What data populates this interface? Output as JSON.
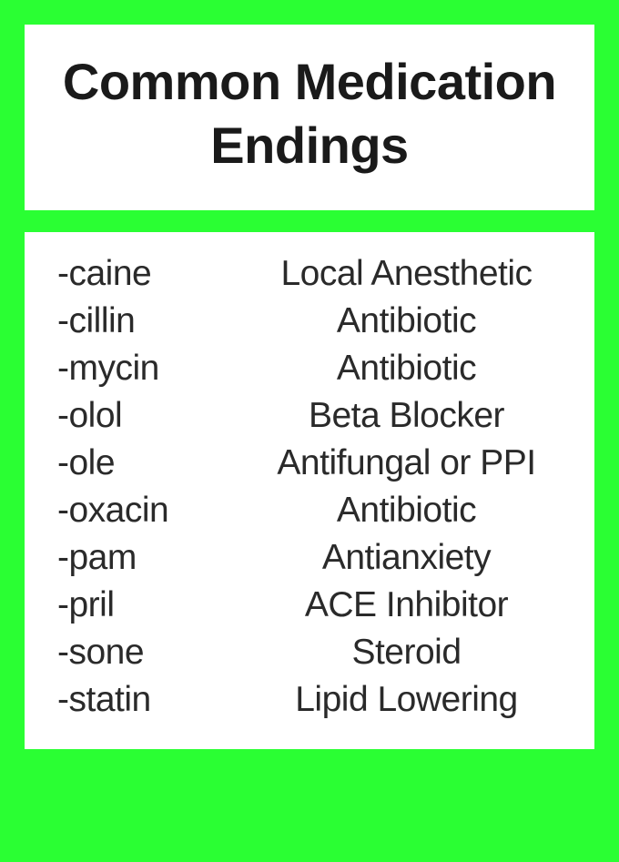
{
  "styling": {
    "border_color": "#2aff33",
    "background_color": "#ffffff",
    "text_color": "#1a1a1a",
    "body_text_color": "#2a2a2a",
    "title_fontsize": 56,
    "body_fontsize": 39,
    "title_fontweight": 900,
    "body_fontweight": 400,
    "outer_padding": 24,
    "suffix_column_width": 205
  },
  "title": "Common Medication Endings",
  "rows": [
    {
      "suffix": "-caine",
      "category": "Local Anesthetic"
    },
    {
      "suffix": "-cillin",
      "category": "Antibiotic"
    },
    {
      "suffix": "-mycin",
      "category": "Antibiotic"
    },
    {
      "suffix": "-olol",
      "category": "Beta Blocker"
    },
    {
      "suffix": "-ole",
      "category": "Antifungal or PPI"
    },
    {
      "suffix": "-oxacin",
      "category": "Antibiotic"
    },
    {
      "suffix": "-pam",
      "category": "Antianxiety"
    },
    {
      "suffix": "-pril",
      "category": "ACE Inhibitor"
    },
    {
      "suffix": "-sone",
      "category": "Steroid"
    },
    {
      "suffix": "-statin",
      "category": "Lipid Lowering"
    }
  ]
}
